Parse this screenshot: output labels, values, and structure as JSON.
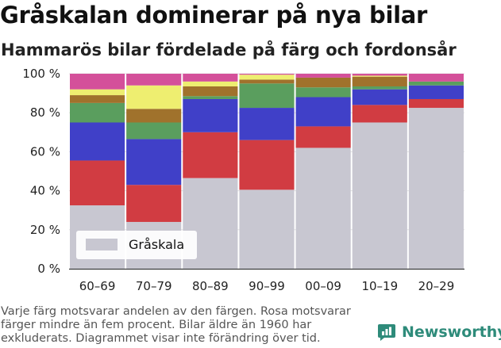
{
  "header": {
    "title": "Gråskalan dominerar på nya bilar",
    "subtitle": "Hammarös bilar fördelade på färg och fordonsår"
  },
  "footnote": {
    "lines": [
      "Varje färg motsvarar andelen av den färgen. Rosa motsvarar",
      "färger mindre än fem procent. Bilar äldre än 1960 har",
      "exkluderats. Diagrammet visar inte förändring över tid."
    ]
  },
  "brand": {
    "name": "Newsworthy",
    "icon": "newsworthy-logo-icon",
    "color": "#2e8b7a"
  },
  "chart_data": {
    "type": "bar",
    "stacked": true,
    "categories": [
      "60–69",
      "70–79",
      "80–89",
      "90–99",
      "00–09",
      "10–19",
      "20–29"
    ],
    "ylim": [
      0,
      100
    ],
    "y_ticks": [
      0,
      20,
      40,
      60,
      80,
      100
    ],
    "y_tick_labels": [
      "0 %",
      "20 %",
      "40 %",
      "60 %",
      "80 %",
      "100 %"
    ],
    "grid": true,
    "legend": {
      "position": "bottom-left",
      "entries": [
        "Gråskala"
      ]
    },
    "series": [
      {
        "name": "Gråskala",
        "color": "#c8c7d1",
        "values": [
          32.5,
          24,
          46.5,
          40.5,
          62,
          75,
          82.5
        ]
      },
      {
        "color": "#d13c42",
        "values": [
          23,
          19,
          23.5,
          25.5,
          11,
          9,
          4.5
        ]
      },
      {
        "color": "#4040c8",
        "values": [
          19.5,
          23.5,
          17,
          16.5,
          15,
          8,
          7
        ]
      },
      {
        "color": "#5a9e5e",
        "values": [
          10,
          8.5,
          1.5,
          12.5,
          5,
          1.5,
          2
        ]
      },
      {
        "color": "#a0722c",
        "values": [
          4,
          7,
          5,
          2,
          5,
          5,
          0
        ]
      },
      {
        "color": "#eeee70",
        "values": [
          3,
          12,
          2.5,
          2.5,
          0,
          0.5,
          0
        ]
      },
      {
        "color": "#d4509a",
        "values": [
          8,
          6,
          4,
          0.5,
          2,
          1,
          4
        ]
      }
    ]
  }
}
